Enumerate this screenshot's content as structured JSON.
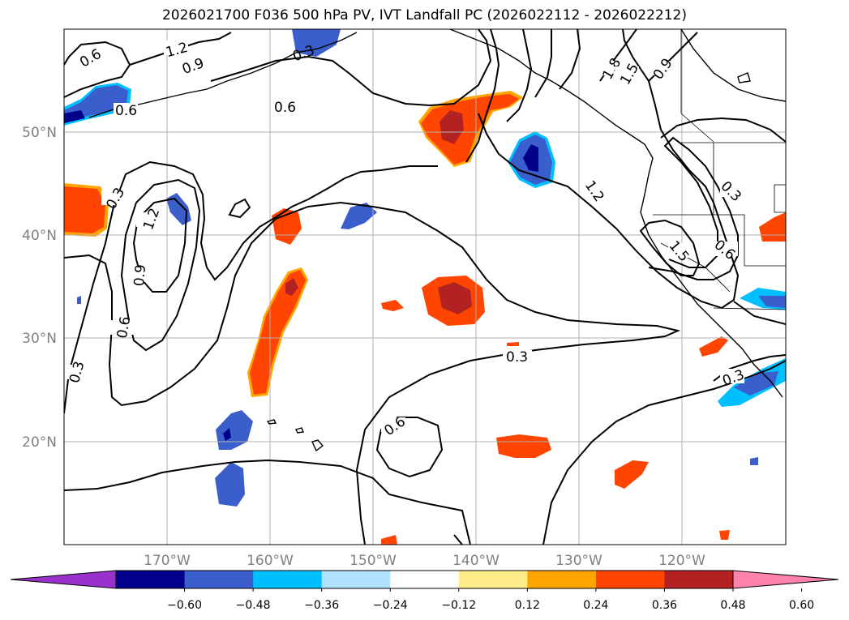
{
  "title": "2026021700 F036 500 hPa PV, IVT Landfall PC (2026022112 - 2026022212)",
  "longitude_ticks": [
    "170°W",
    "160°W",
    "150°W",
    "140°W",
    "130°W",
    "120°W"
  ],
  "latitude_ticks": [
    "50°N",
    "40°N",
    "30°N",
    "20°N"
  ],
  "colorbar": {
    "colors": [
      "#9932cc",
      "#00008b",
      "#3a5fcd",
      "#00bfff",
      "#b0e2ff",
      "#ffffff",
      "#ffec8b",
      "#ffa500",
      "#ff4500",
      "#b22222",
      "#ff82ab"
    ],
    "tick_labels": [
      "−0.60",
      "−0.48",
      "−0.36",
      "−0.24",
      "−0.12",
      "0.12",
      "0.24",
      "0.36",
      "0.48",
      "0.60"
    ]
  },
  "contour_labels": [
    "0.6",
    "1.2",
    "0.9",
    "0.6",
    "0.6",
    "0.3",
    "1.2",
    "0.9",
    "0.6",
    "0.3",
    "0.6",
    "0.3",
    "1.2",
    "1.8",
    "1.5",
    "0.9",
    "0.3",
    "1.5",
    "0.6",
    "0.3",
    "0.3"
  ],
  "colors": {
    "positive_anomaly": "#ff4500",
    "negative_anomaly": "#3a5fcd",
    "grid": "#b0b0b0",
    "contour": "#000000"
  }
}
